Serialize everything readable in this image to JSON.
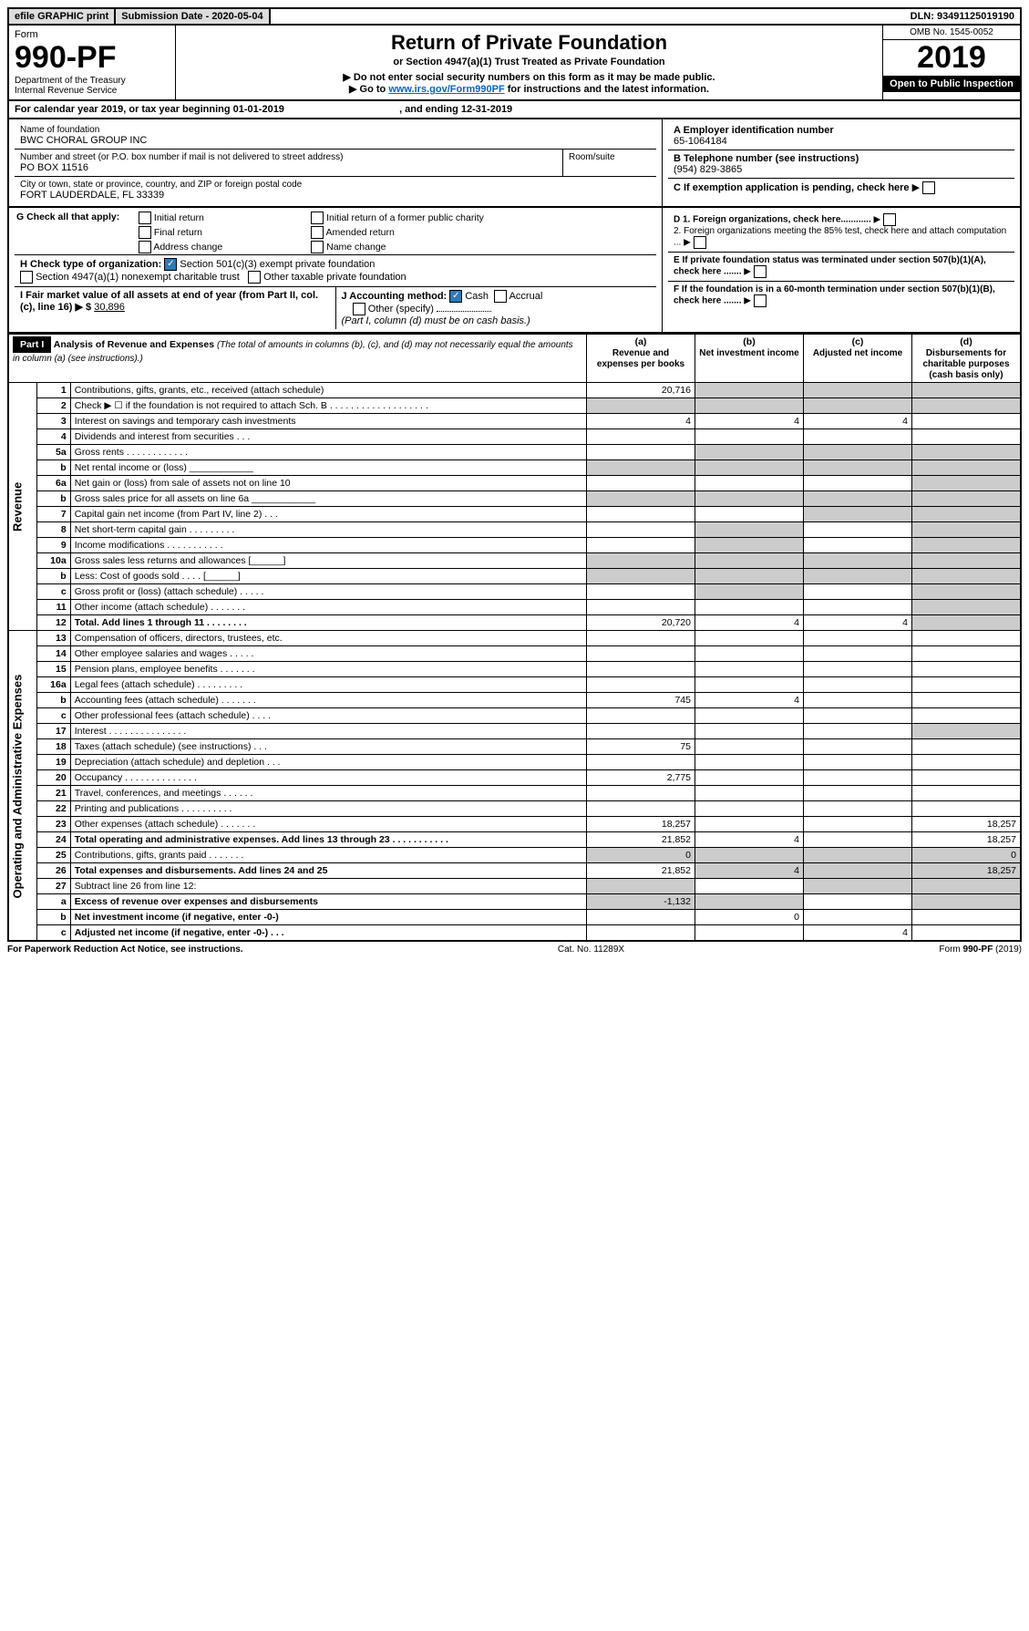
{
  "topbar": {
    "efile": "efile GRAPHIC print",
    "subdate_lbl": "Submission Date - 2020-05-04",
    "dln_lbl": "DLN: 93491125019190"
  },
  "header": {
    "form": "Form",
    "formno": "990-PF",
    "dept": "Department of the Treasury",
    "irs": "Internal Revenue Service",
    "title": "Return of Private Foundation",
    "subtitle": "or Section 4947(a)(1) Trust Treated as Private Foundation",
    "warn": "▶ Do not enter social security numbers on this form as it may be made public.",
    "goto": "▶ Go to ",
    "link": "www.irs.gov/Form990PF",
    "goto2": " for instructions and the latest information.",
    "omb": "OMB No. 1545-0052",
    "year": "2019",
    "open": "Open to Public Inspection"
  },
  "cal": {
    "pre": "For calendar year 2019, or tax year beginning ",
    "begin": "01-01-2019",
    "mid": ", and ending ",
    "end": "12-31-2019"
  },
  "entity": {
    "name_lbl": "Name of foundation",
    "name": "BWC CHORAL GROUP INC",
    "addr_lbl": "Number and street (or P.O. box number if mail is not delivered to street address)",
    "addr": "PO BOX 11516",
    "room_lbl": "Room/suite",
    "city_lbl": "City or town, state or province, country, and ZIP or foreign postal code",
    "city": "FORT LAUDERDALE, FL  33339",
    "a_lbl": "A Employer identification number",
    "ein": "65-1064184",
    "b_lbl": "B Telephone number (see instructions)",
    "phone": "(954) 829-3865",
    "c_lbl": "C If exemption application is pending, check here"
  },
  "g": {
    "lbl": "G Check all that apply:",
    "initial": "Initial return",
    "init_former": "Initial return of a former public charity",
    "final": "Final return",
    "amended": "Amended return",
    "addrchg": "Address change",
    "namechg": "Name change"
  },
  "h": {
    "lbl": "H Check type of organization:",
    "501c3": "Section 501(c)(3) exempt private foundation",
    "4947": "Section 4947(a)(1) nonexempt charitable trust",
    "other": "Other taxable private foundation"
  },
  "d": {
    "d1": "D 1. Foreign organizations, check here............",
    "d2": "2. Foreign organizations meeting the 85% test, check here and attach computation ..."
  },
  "e": {
    "lbl": "E  If private foundation status was terminated under section 507(b)(1)(A), check here ......."
  },
  "f": {
    "lbl": "F  If the foundation is in a 60-month termination under section 507(b)(1)(B), check here ......."
  },
  "i": {
    "lbl": "I Fair market value of all assets at end of year (from Part II, col. (c), line 16) ▶ $",
    "val": "30,896"
  },
  "j": {
    "lbl": "J Accounting method:",
    "cash": "Cash",
    "accrual": "Accrual",
    "other": "Other (specify)",
    "note": "(Part I, column (d) must be on cash basis.)"
  },
  "part1": {
    "badge": "Part I",
    "title": "Analysis of Revenue and Expenses ",
    "title2": "(The total of amounts in columns (b), (c), and (d) may not necessarily equal the amounts in column (a) (see instructions).)",
    "cols": {
      "a_hdr": "(a)",
      "a": "Revenue and expenses per books",
      "b_hdr": "(b)",
      "b": "Net investment income",
      "c_hdr": "(c)",
      "c": "Adjusted net income",
      "d_hdr": "(d)",
      "d": "Disbursements for charitable purposes (cash basis only)"
    }
  },
  "sections": {
    "rev": "Revenue",
    "exp": "Operating and Administrative Expenses"
  },
  "rows": [
    {
      "n": "1",
      "d": "Contributions, gifts, grants, etc., received (attach schedule)",
      "a": "20,716"
    },
    {
      "n": "2",
      "d": "Check ▶ ☐ if the foundation is not required to attach Sch. B  . . . . . . . . . . . . . . . . . . ."
    },
    {
      "n": "3",
      "d": "Interest on savings and temporary cash investments",
      "a": "4",
      "b": "4",
      "c": "4"
    },
    {
      "n": "4",
      "d": "Dividends and interest from securities   .  .  ."
    },
    {
      "n": "5a",
      "d": "Gross rents    .  .  .  .  .  .  .  .  .  .  .  ."
    },
    {
      "n": "b",
      "d": "Net rental income or (loss) ____________"
    },
    {
      "n": "6a",
      "d": "Net gain or (loss) from sale of assets not on line 10"
    },
    {
      "n": "b",
      "d": "Gross sales price for all assets on line 6a ____________"
    },
    {
      "n": "7",
      "d": "Capital gain net income (from Part IV, line 2)   .  .  ."
    },
    {
      "n": "8",
      "d": "Net short-term capital gain  .  .  .  .  .  .  .  .  ."
    },
    {
      "n": "9",
      "d": "Income modifications  .  .  .  .  .  .  .  .  .  .  ."
    },
    {
      "n": "10a",
      "d": "Gross sales less returns and allowances  [______]"
    },
    {
      "n": "b",
      "d": "Less: Cost of goods sold    .  .  .  .  [______]"
    },
    {
      "n": "c",
      "d": "Gross profit or (loss) (attach schedule)   .  .  .  .  ."
    },
    {
      "n": "11",
      "d": "Other income (attach schedule)   .  .  .  .  .  .  ."
    },
    {
      "n": "12",
      "d": "Total. Add lines 1 through 11   .  .  .  .  .  .  .  .",
      "a": "20,720",
      "b": "4",
      "c": "4",
      "bold": true
    },
    {
      "n": "13",
      "d": "Compensation of officers, directors, trustees, etc."
    },
    {
      "n": "14",
      "d": "Other employee salaries and wages   .  .  .  .  ."
    },
    {
      "n": "15",
      "d": "Pension plans, employee benefits  .  .  .  .  .  .  ."
    },
    {
      "n": "16a",
      "d": "Legal fees (attach schedule)  .  .  .  .  .  .  .  .  ."
    },
    {
      "n": "b",
      "d": "Accounting fees (attach schedule)  .  .  .  .  .  .  .",
      "a": "745",
      "b": "4"
    },
    {
      "n": "c",
      "d": "Other professional fees (attach schedule)   .  .  .  ."
    },
    {
      "n": "17",
      "d": "Interest  .  .  .  .  .  .  .  .  .  .  .  .  .  .  ."
    },
    {
      "n": "18",
      "d": "Taxes (attach schedule) (see instructions)   .  .  .",
      "a": "75"
    },
    {
      "n": "19",
      "d": "Depreciation (attach schedule) and depletion   .  .  ."
    },
    {
      "n": "20",
      "d": "Occupancy  .  .  .  .  .  .  .  .  .  .  .  .  .  .",
      "a": "2,775"
    },
    {
      "n": "21",
      "d": "Travel, conferences, and meetings  .  .  .  .  .  ."
    },
    {
      "n": "22",
      "d": "Printing and publications  .  .  .  .  .  .  .  .  .  ."
    },
    {
      "n": "23",
      "d": "Other expenses (attach schedule)  .  .  .  .  .  .  .",
      "a": "18,257",
      "dd": "18,257"
    },
    {
      "n": "24",
      "d": "Total operating and administrative expenses. Add lines 13 through 23  .  .  .  .  .  .  .  .  .  .  .",
      "a": "21,852",
      "b": "4",
      "dd": "18,257",
      "bold": true
    },
    {
      "n": "25",
      "d": "Contributions, gifts, grants paid   .  .  .  .  .  .  .",
      "a": "0",
      "dd": "0"
    },
    {
      "n": "26",
      "d": "Total expenses and disbursements. Add lines 24 and 25",
      "a": "21,852",
      "b": "4",
      "dd": "18,257",
      "bold": true
    },
    {
      "n": "27",
      "d": "Subtract line 26 from line 12:"
    },
    {
      "n": "a",
      "d": "Excess of revenue over expenses and disbursements",
      "a": "-1,132",
      "bold": true
    },
    {
      "n": "b",
      "d": "Net investment income (if negative, enter -0-)",
      "b": "0",
      "bold": true
    },
    {
      "n": "c",
      "d": "Adjusted net income (if negative, enter -0-)   .  .  .",
      "c": "4",
      "bold": true
    }
  ],
  "grayrows": {
    "2": {
      "b": true,
      "c": true,
      "d": true
    },
    "5a": {
      "b": true,
      "c": true,
      "d": true
    },
    "b_5": {
      "b": true,
      "c": true,
      "d": true
    },
    "6a": {
      "d": true
    },
    "b_6": {
      "b": true,
      "c": true,
      "d": true
    },
    "7": {
      "c": true,
      "d": true
    },
    "8": {
      "b": true,
      "d": true
    },
    "9": {
      "b": true,
      "d": true
    },
    "10a": {
      "b": true,
      "c": true,
      "d": true
    },
    "b_10": {
      "b": true,
      "c": true,
      "d": true
    },
    "c_10": {
      "b": true,
      "d": true
    },
    "11": {
      "d": true
    },
    "12": {
      "d": true
    },
    "19": {
      "d": true
    },
    "27": {
      "a": true,
      "b": true,
      "c": true,
      "d": true
    },
    "a_27": {
      "b": true,
      "c": true,
      "d": true
    },
    "b_27": {
      "a": true,
      "c": true,
      "d": true
    },
    "c_27": {
      "a": true,
      "b": true,
      "d": true
    },
    "1": {
      "b": true,
      "c": true,
      "d": true
    }
  },
  "footer": {
    "left": "For Paperwork Reduction Act Notice, see instructions.",
    "mid": "Cat. No. 11289X",
    "right": "Form 990-PF (2019)"
  }
}
